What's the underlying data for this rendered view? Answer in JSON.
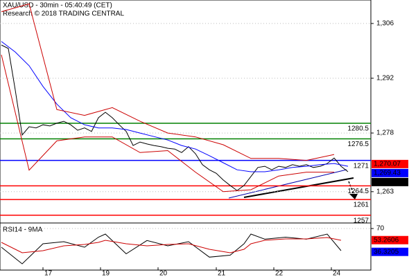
{
  "chart_data": [
    {
      "type": "line",
      "title": "XAU/USD - 30min - 05:40:49 (CET)",
      "subtitle": "Research © 2018 TRADING CENTRAL",
      "xlim": [
        -0.2,
        53.3
      ],
      "ylim": [
        1255,
        1312
      ],
      "yticks": [
        {
          "value": 1306,
          "label": "1,306"
        },
        {
          "value": 1292,
          "label": "1,292"
        },
        {
          "value": 1278,
          "label": "1,278"
        },
        {
          "value": 1263,
          "label": "1,263"
        }
      ],
      "x": [
        0,
        1,
        2,
        3,
        4,
        5,
        6,
        7,
        8,
        9,
        10,
        11,
        12,
        13,
        14,
        15,
        16,
        17,
        18,
        19,
        20,
        21,
        22,
        23,
        24,
        25,
        26,
        27,
        28,
        29,
        30,
        31,
        32,
        33,
        34,
        35,
        36,
        37,
        38,
        39,
        40,
        41,
        42,
        43,
        44,
        45,
        46,
        47,
        48,
        49,
        50
      ],
      "series": [
        {
          "color": "#000000",
          "values": [
            1300.5,
            1299.6,
            1289,
            1277.5,
            1279.6,
            1279.3,
            1280.1,
            1279.8,
            1280.5,
            1281,
            1280.1,
            1278.7,
            1279.3,
            1278.4,
            1281.9,
            1283.3,
            1281.9,
            1280.1,
            1278.4,
            1274.8,
            1275.7,
            1275.2,
            1274.8,
            1274.5,
            1274.1,
            1273.9,
            1273,
            1274.5,
            1272.7,
            1269.9,
            1268.6,
            1267.7,
            1266,
            1264.6,
            1263.3,
            1264.6,
            1266.9,
            1269.2,
            1269.5,
            1268.6,
            1269.5,
            1269.2,
            1269.9,
            1269.5,
            1269.9,
            1269.2,
            1269.5,
            1270.2,
            1271.6,
            1269.5,
            1268.1
          ]
        },
        {
          "color": "#0000ff",
          "x": [
            0,
            2,
            4,
            6,
            8,
            10,
            12,
            14,
            16,
            18,
            20,
            22,
            24,
            26,
            28,
            30,
            32,
            34,
            36,
            38,
            40,
            42,
            44,
            46,
            48,
            50
          ],
          "values": [
            1301.4,
            1298.7,
            1295.2,
            1289.9,
            1285.4,
            1281.9,
            1280.1,
            1279.3,
            1279.3,
            1278.9,
            1278,
            1277.1,
            1276.2,
            1274.8,
            1273.9,
            1272.2,
            1270.4,
            1268.6,
            1268.1,
            1268.1,
            1268.6,
            1269.2,
            1269.5,
            1269.9,
            1270.2,
            1269.5
          ]
        },
        {
          "color": "#cc0000",
          "x": [
            0,
            4,
            8,
            12,
            16,
            20,
            24,
            28,
            32,
            36,
            40,
            44,
            48
          ],
          "values": [
            1309,
            1311,
            1284,
            1282.5,
            1284.5,
            1281,
            1278,
            1277,
            1275,
            1271.5,
            1271.5,
            1271,
            1272.5
          ]
        },
        {
          "color": "#cc0000",
          "x": [
            0,
            4,
            8,
            12,
            16,
            20,
            24,
            28,
            32,
            36,
            40,
            44,
            48
          ],
          "values": [
            1298,
            1268.5,
            1276,
            1277,
            1277,
            1273,
            1273.5,
            1268,
            1263,
            1263.5,
            1267,
            1268,
            1268
          ]
        }
      ],
      "levels": [
        {
          "value": 1280.5,
          "label": "1280.5",
          "color": "#008000"
        },
        {
          "value": 1276.5,
          "label": "1276.5",
          "color": "#008000"
        },
        {
          "value": 1271,
          "label": "1271",
          "color": "#0000ff"
        },
        {
          "value": 1264.5,
          "label": "1264.5",
          "color": "#ff0000"
        },
        {
          "value": 1261,
          "label": "1261",
          "color": "#ff0000"
        },
        {
          "value": 1257,
          "label": "1257",
          "color": "#ff0000"
        }
      ],
      "last_values": [
        {
          "value": 1270.07,
          "label": "1,270.07",
          "color": "#ff0000"
        },
        {
          "value": 1269.43,
          "label": "1,269.43",
          "color": "#0000ff"
        },
        {
          "value": 1267.98,
          "label": "1,267.98",
          "color": "#000000"
        }
      ]
    },
    {
      "type": "line",
      "title": "RSI14 - 9MA",
      "xlim": [
        -0.2,
        53.3
      ],
      "ylim": [
        10,
        77
      ],
      "yticks": [
        70
      ],
      "xticks": [
        {
          "value": 6,
          "label": "17"
        },
        {
          "value": 14.3,
          "label": "19"
        },
        {
          "value": 22.6,
          "label": "20"
        },
        {
          "value": 31,
          "label": "21"
        },
        {
          "value": 39.3,
          "label": "22"
        },
        {
          "value": 47.6,
          "label": "24"
        }
      ],
      "x": [
        0,
        3,
        6,
        9,
        12,
        14,
        15,
        18,
        21,
        24,
        27,
        30,
        33,
        35,
        36,
        38,
        41,
        44,
        47,
        49
      ],
      "series": [
        {
          "color": "#000000",
          "values": [
            43,
            19,
            48,
            51,
            43,
            57.5,
            62,
            33.5,
            52.7,
            45,
            51,
            28.7,
            31.5,
            48,
            62,
            54.6,
            57.5,
            54.6,
            62,
            38
          ]
        },
        {
          "color": "#cc0000",
          "values": [
            50,
            35,
            38,
            45,
            47,
            50,
            53,
            48,
            45,
            47,
            48,
            40,
            35,
            40,
            48,
            53,
            55,
            55,
            57,
            53
          ]
        }
      ],
      "last_values": [
        {
          "value": 53.2606,
          "label": "53.2606",
          "color": "#ff0000"
        },
        {
          "value": 36.3205,
          "label": "36.3205",
          "color": "#0000ff"
        }
      ]
    }
  ]
}
